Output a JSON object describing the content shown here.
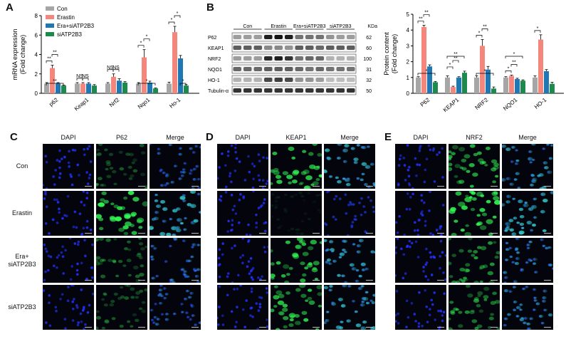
{
  "panels": {
    "A": "A",
    "B": "B",
    "C": "C",
    "D": "D",
    "E": "E"
  },
  "colors": {
    "Con": "#a6a6a6",
    "Erastin": "#f4867c",
    "Era+siATP2B3": "#1f78b4",
    "siATP2B3": "#1c8a4c",
    "dapi": "#2233ff",
    "green": "#33ff55",
    "merge": "#33d9c8"
  },
  "chart_data": [
    {
      "type": "bar",
      "panel": "A",
      "ylabel": "mRNA expression\n(Fold change)",
      "ylim": [
        0,
        8
      ],
      "yticks": [
        "0",
        "2",
        "4",
        "6",
        "8"
      ],
      "categories": [
        "p62",
        "Keap1",
        "Nrf2",
        "Nqo1",
        "Ho-1"
      ],
      "series": [
        {
          "name": "Con",
          "values": [
            1.0,
            1.0,
            1.0,
            1.0,
            1.0
          ]
        },
        {
          "name": "Erastin",
          "values": [
            2.6,
            1.0,
            1.7,
            3.7,
            6.3
          ]
        },
        {
          "name": "Era+siATP2B3",
          "values": [
            1.0,
            1.0,
            1.3,
            1.1,
            3.6
          ]
        },
        {
          "name": "siATP2B3",
          "values": [
            0.8,
            0.8,
            1.1,
            0.5,
            0.8
          ]
        }
      ],
      "errors": [
        [
          0.1,
          0.1,
          0.1,
          0.1,
          0.15
        ],
        [
          0.3,
          0.1,
          0.3,
          0.8,
          0.6
        ],
        [
          0.1,
          0.1,
          0.2,
          0.15,
          0.3
        ],
        [
          0.05,
          0.1,
          0.1,
          0.05,
          0.1
        ]
      ],
      "legend": [
        "Con",
        "Erastin",
        "Era+siATP2B3",
        "siATP2B3"
      ],
      "sig": [
        "**",
        "**",
        "**",
        "NS",
        "NS",
        "NS",
        "NS",
        "*",
        "*",
        "*",
        "*",
        "*",
        "*"
      ]
    },
    {
      "type": "bar",
      "panel": "B",
      "ylabel": "Protein content\n(Fold change)",
      "ylim": [
        0,
        5
      ],
      "yticks": [
        "0",
        "1",
        "2",
        "3",
        "4",
        "5"
      ],
      "categories": [
        "P62",
        "KEAP1",
        "NRF2",
        "NQO1",
        "HO-1"
      ],
      "series": [
        {
          "name": "Con",
          "values": [
            1.0,
            1.0,
            1.0,
            1.0,
            1.0
          ]
        },
        {
          "name": "Erastin",
          "values": [
            4.2,
            0.4,
            3.0,
            1.1,
            3.4
          ]
        },
        {
          "name": "Era+siATP2B3",
          "values": [
            1.7,
            1.0,
            1.5,
            0.9,
            1.4
          ]
        },
        {
          "name": "siATP2B3",
          "values": [
            0.7,
            1.3,
            0.3,
            0.8,
            0.6
          ]
        }
      ],
      "errors": [
        [
          0.05,
          0.1,
          0.1,
          0.05,
          0.1
        ],
        [
          0.1,
          0.05,
          0.4,
          0.05,
          0.3
        ],
        [
          0.1,
          0.05,
          0.2,
          0.05,
          0.1
        ],
        [
          0.05,
          0.1,
          0.1,
          0.05,
          0.1
        ]
      ],
      "sig": [
        "**",
        "**",
        "*",
        "*",
        "**",
        "**",
        "*",
        "**",
        "*",
        "*",
        "**",
        "*",
        "*"
      ]
    }
  ],
  "western": {
    "kda_label": "KDa",
    "groups": [
      "Con",
      "Erastin",
      "Era+siATP2B3",
      "siATP2B3"
    ],
    "bands": [
      {
        "name": "P62",
        "kda": "62"
      },
      {
        "name": "KEAP1",
        "kda": "60"
      },
      {
        "name": "NRF2",
        "kda": "100"
      },
      {
        "name": "NQO1",
        "kda": "31"
      },
      {
        "name": "HO-1",
        "kda": "32"
      },
      {
        "name": "Tubulin-α",
        "kda": "50"
      }
    ]
  },
  "immuno": {
    "C": {
      "cols": [
        "DAPI",
        "P62",
        "Merge"
      ]
    },
    "D": {
      "cols": [
        "DAPI",
        "KEAP1",
        "Merge"
      ]
    },
    "E": {
      "cols": [
        "DAPI",
        "NRF2",
        "Merge"
      ]
    },
    "rows": [
      "Con",
      "Erastin",
      "Era+\nsiATP2B3",
      "siATP2B3"
    ]
  }
}
